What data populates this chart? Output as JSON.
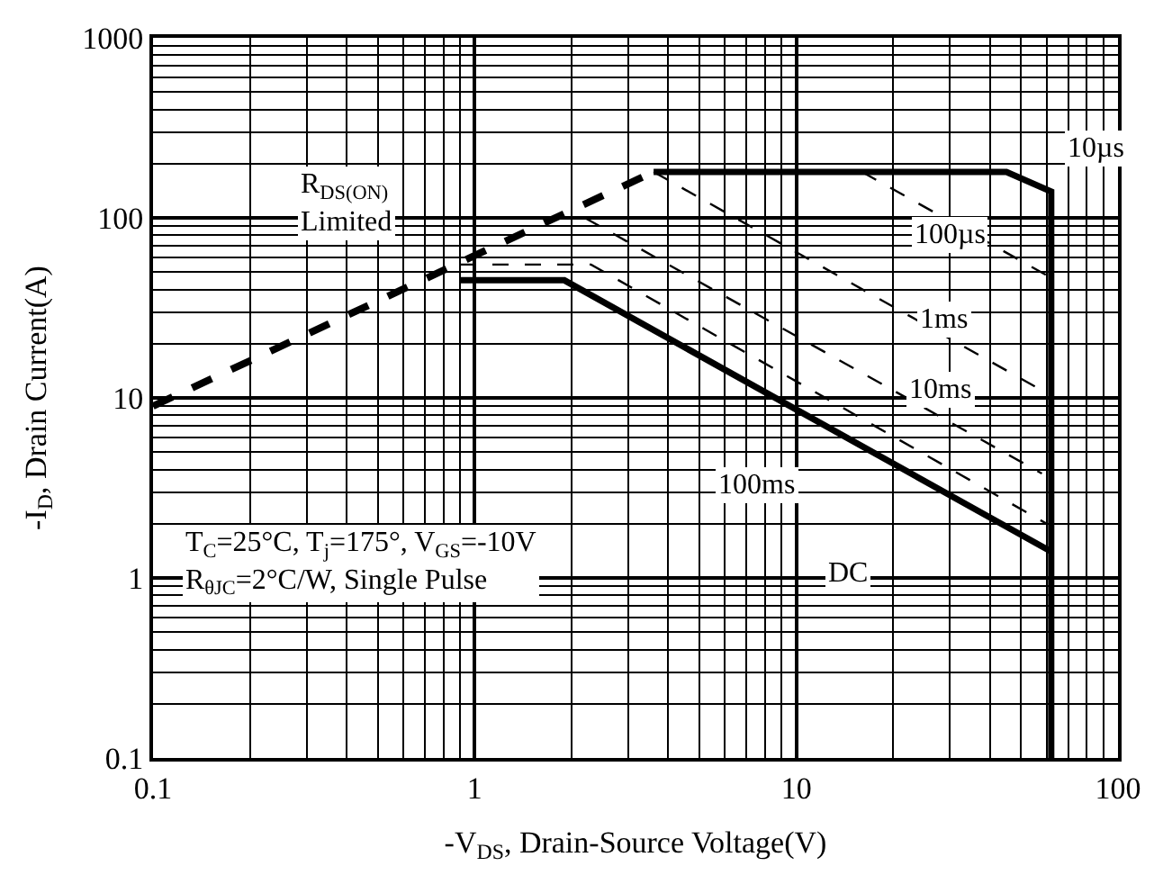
{
  "chart_data": {
    "type": "line",
    "xlabel": "-V$_{DS}$, Drain-Source Voltage(V)",
    "ylabel": "-I$_{D}$, Drain Current(A)",
    "log": "xy",
    "grid": true,
    "marker": "none",
    "xlim": [
      0.1,
      100
    ],
    "xticks": [
      0.1,
      1,
      10,
      100
    ],
    "ylim": [
      0.1,
      1000
    ],
    "yticks": [
      0.1,
      1,
      10,
      100,
      1000
    ],
    "series": [
      {
        "color": "#000000",
        "line_style": "dashed",
        "x": [
          0.1,
          3.6
        ],
        "values": [
          9,
          180
        ]
      },
      {
        "color": "#000000",
        "line_style": "solid",
        "x": [
          3.6,
          45,
          62,
          62
        ],
        "values": [
          180,
          180,
          140,
          0.1
        ]
      },
      {
        "color": "#000000",
        "line_style": "dashed",
        "x": [
          16,
          60
        ],
        "values": [
          180,
          48
        ]
      },
      {
        "color": "#000000",
        "line_style": "dashed",
        "x": [
          3.6,
          58
        ],
        "values": [
          180,
          11
        ]
      },
      {
        "color": "#000000",
        "line_style": "dashed",
        "x": [
          2.2,
          58
        ],
        "values": [
          100,
          3.8
        ]
      },
      {
        "color": "#000000",
        "line_style": "dashed",
        "x": [
          0.9,
          2.3,
          60
        ],
        "values": [
          55,
          55,
          2.0
        ]
      },
      {
        "color": "#000000",
        "line_style": "solid",
        "x": [
          0.9,
          1.9,
          62
        ],
        "values": [
          45,
          45,
          1.4
        ]
      }
    ],
    "annotations": [
      "R$_{DS(ON)}$\nLimited",
      {
        "text": "10µs",
        "x": 85,
        "y": 240
      },
      {
        "text": "100µs",
        "x": 30,
        "y": 80
      },
      {
        "text": "1ms",
        "x": 29,
        "y": 27
      },
      {
        "text": "10ms",
        "x": 28,
        "y": 11
      },
      "100ms",
      {
        "text": "DC",
        "x": 14.5,
        "y": 1.07
      },
      "T$_{C}$=25°C, T$_{j}$=175°, V$_{GS}$=-10V\nR$_{θJC}$=2°C/W, Single Pulse"
    ]
  }
}
